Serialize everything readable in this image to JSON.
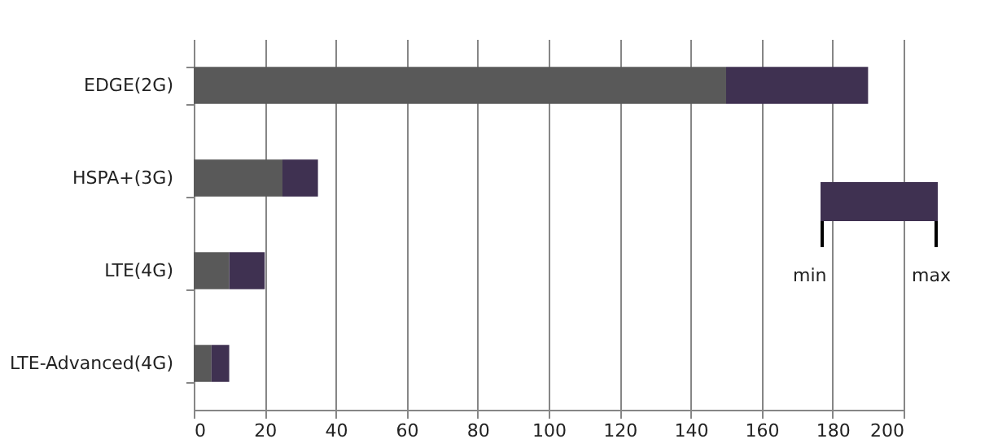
{
  "chart_data": {
    "type": "bar",
    "orientation": "horizontal",
    "stacked": true,
    "categories": [
      "EDGE(2G)",
      "HSPA+(3G)",
      "LTE(4G)",
      "LTE-Advanced(4G)"
    ],
    "series": [
      {
        "color": "#595959",
        "values": [
          150,
          25,
          10,
          5
        ]
      },
      {
        "color": "#3f3151",
        "values": [
          40,
          10,
          10,
          5
        ]
      }
    ],
    "xlim": [
      0,
      200
    ],
    "xticks": [
      0,
      20,
      40,
      60,
      80,
      100,
      120,
      140,
      160,
      180,
      200
    ],
    "grid": "x",
    "legend": false,
    "annotations": [
      "min",
      "max"
    ]
  }
}
